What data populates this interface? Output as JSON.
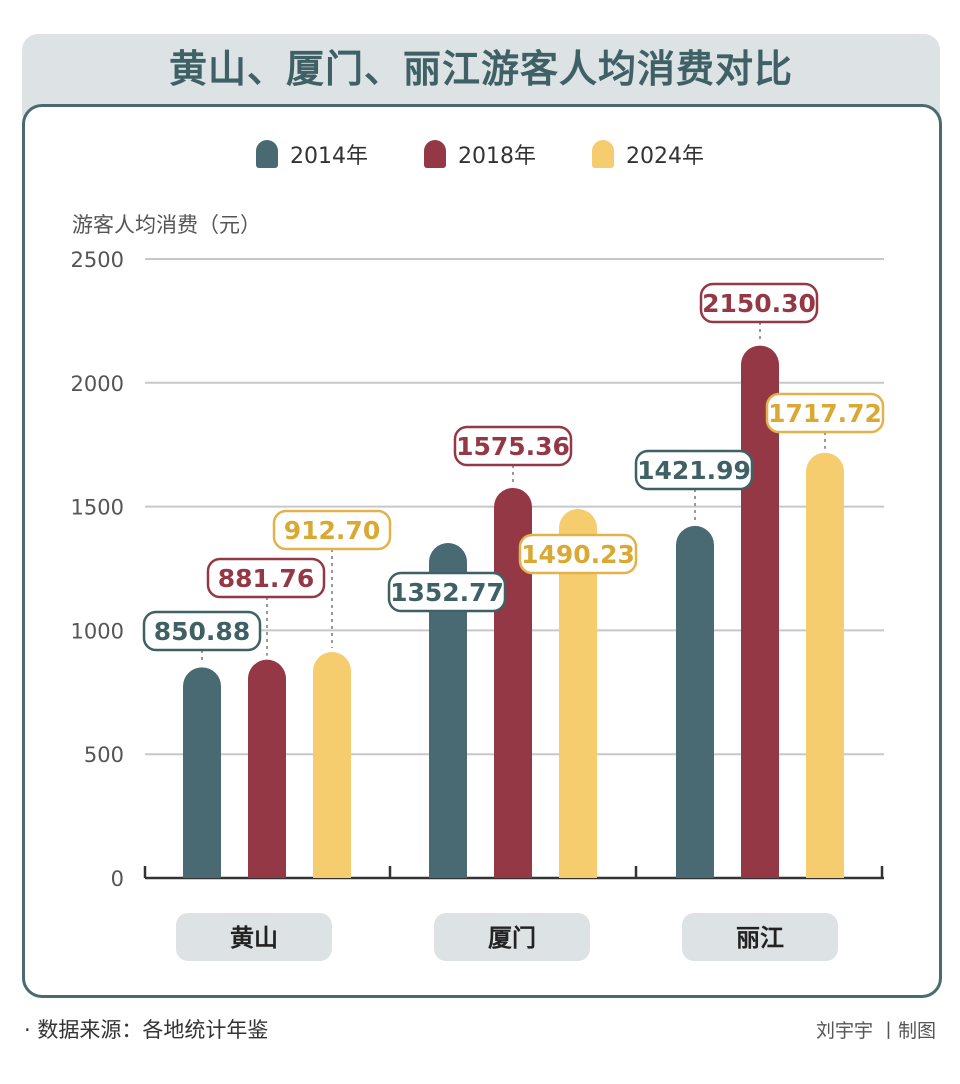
{
  "title": "黄山、厦门、丽江游客人均消费对比",
  "legend": [
    {
      "label": "2014年",
      "color": "#4a6a73"
    },
    {
      "label": "2018年",
      "color": "#953846"
    },
    {
      "label": "2024年",
      "color": "#f6cd6e"
    }
  ],
  "chart_data": {
    "type": "bar",
    "title": "黄山、厦门、丽江游客人均消费对比",
    "ylabel": "游客人均消费（元）",
    "xlabel": "",
    "ylim": [
      0,
      2500
    ],
    "yticks": [
      0,
      500,
      1000,
      1500,
      2000,
      2500
    ],
    "grid": true,
    "legend_position": "top-center",
    "categories": [
      "黄山",
      "厦门",
      "丽江"
    ],
    "series": [
      {
        "name": "2014年",
        "color": "#4a6a73",
        "values": [
          850.88,
          1352.77,
          1421.99
        ],
        "labels": [
          "850.88",
          "1352.77",
          "1421.99"
        ]
      },
      {
        "name": "2018年",
        "color": "#953846",
        "values": [
          881.76,
          1575.36,
          2150.3
        ],
        "labels": [
          "881.76",
          "1575.36",
          "2150.30"
        ]
      },
      {
        "name": "2024年",
        "color": "#f6cd6e",
        "values": [
          912.7,
          1490.23,
          1717.72
        ],
        "labels": [
          "912.70",
          "1490.23",
          "1717.72"
        ]
      }
    ]
  },
  "footer": {
    "source": "· 数据来源：各地统计年鉴",
    "credit": "刘宇宇 丨制图"
  }
}
